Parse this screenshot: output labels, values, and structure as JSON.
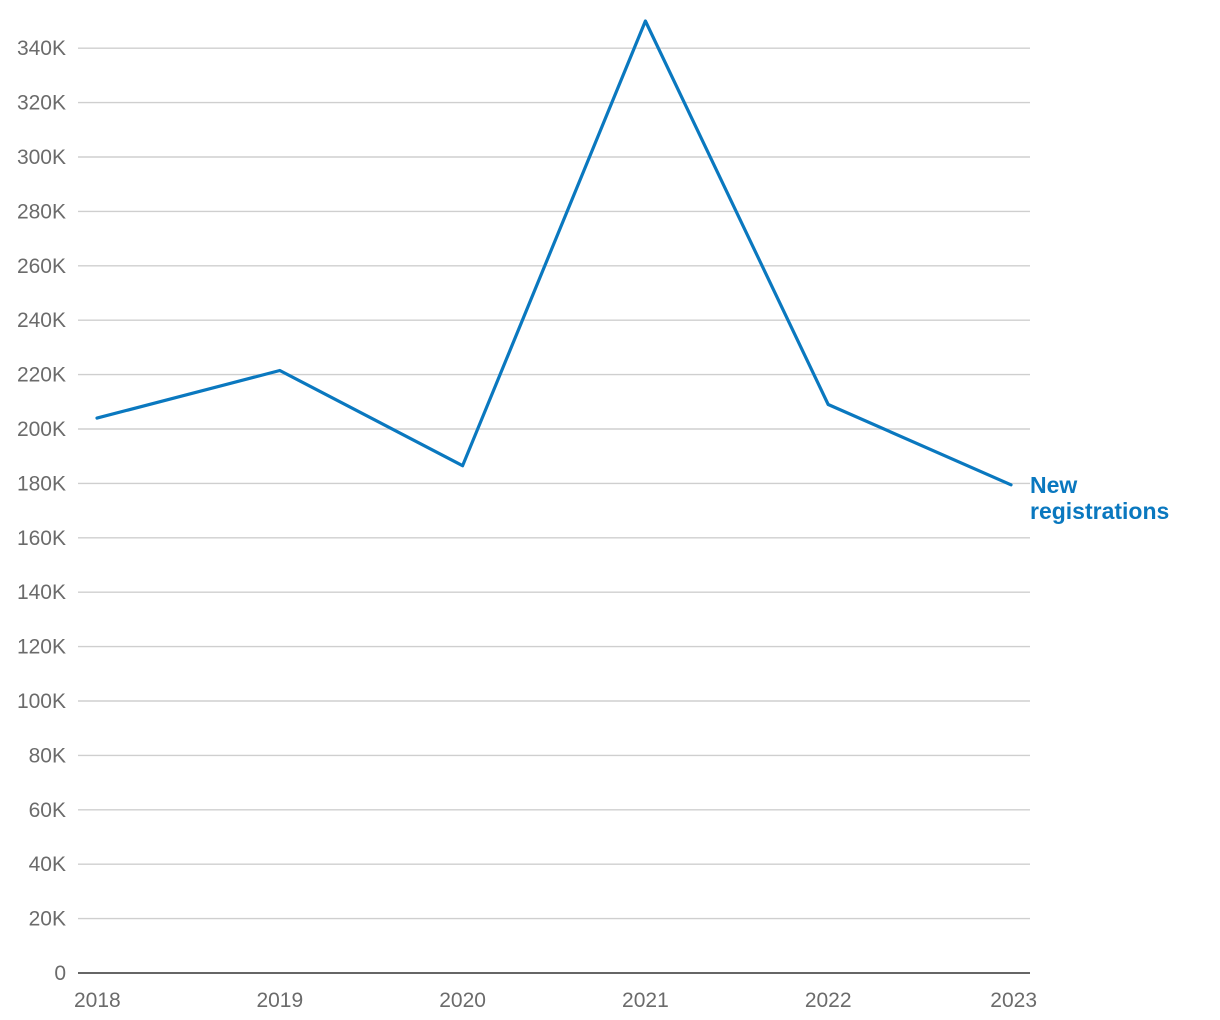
{
  "chart_data": {
    "type": "line",
    "title": "",
    "xlabel": "",
    "ylabel": "",
    "categories": [
      "2018",
      "2019",
      "2020",
      "2021",
      "2022",
      "2023"
    ],
    "series": [
      {
        "name": "New registrations",
        "values": [
          204000,
          221500,
          186500,
          350000,
          209000,
          179500
        ],
        "color": "#0a78bf"
      }
    ],
    "ylim": [
      0,
      350000
    ],
    "yticks": [
      0,
      20000,
      40000,
      60000,
      80000,
      100000,
      120000,
      140000,
      160000,
      180000,
      200000,
      220000,
      240000,
      260000,
      280000,
      300000,
      320000,
      340000
    ],
    "ytick_labels": [
      "0",
      "20K",
      "40K",
      "60K",
      "80K",
      "100K",
      "120K",
      "140K",
      "160K",
      "180K",
      "200K",
      "220K",
      "240K",
      "260K",
      "280K",
      "300K",
      "320K",
      "340K"
    ],
    "grid": true,
    "legend": "end-of-line label"
  }
}
